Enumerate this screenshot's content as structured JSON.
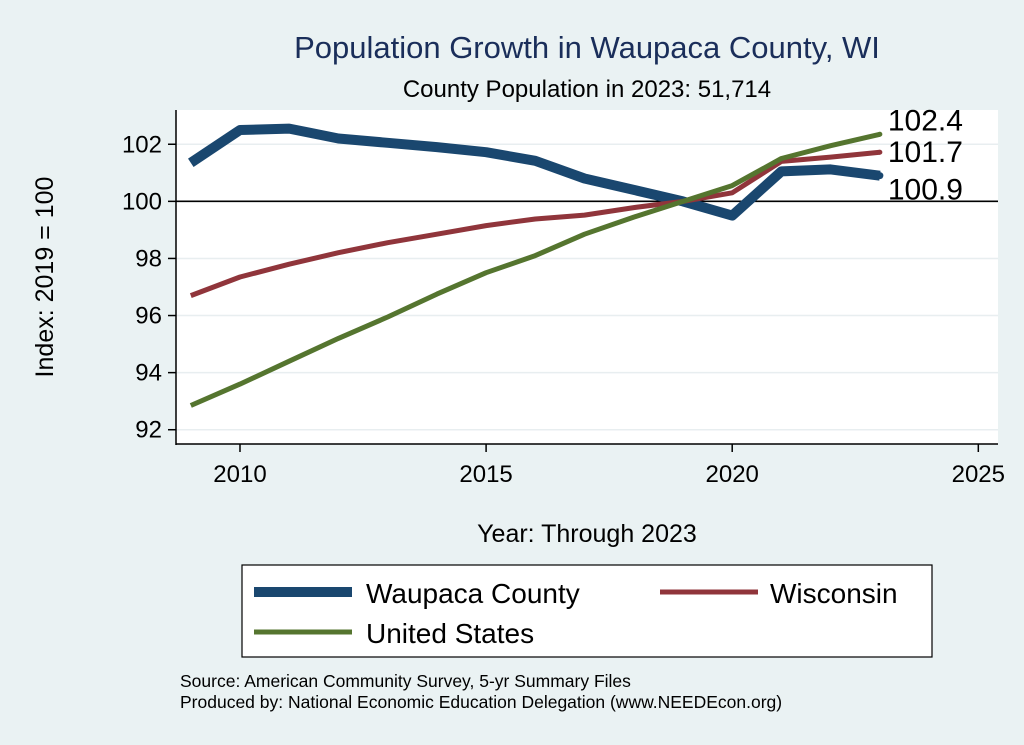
{
  "chart_data": {
    "type": "line",
    "title": "Population Growth in Waupaca County, WI",
    "subtitle": "County Population in 2023: 51,714",
    "xlabel": "Year: Through 2023",
    "ylabel": "Index: 2019 = 100",
    "xlim": [
      2008.7,
      2025.4
    ],
    "ylim": [
      91.5,
      103.2
    ],
    "xticks": [
      2010,
      2015,
      2020,
      2025
    ],
    "yticks": [
      92,
      94,
      96,
      98,
      100,
      102
    ],
    "reference_line": 100,
    "grid": true,
    "x": [
      2009,
      2010,
      2011,
      2012,
      2013,
      2014,
      2015,
      2016,
      2017,
      2018,
      2019,
      2020,
      2021,
      2022,
      2023
    ],
    "series": [
      {
        "name": "Waupaca  County",
        "color": "#1a476f",
        "values": [
          101.35,
          102.5,
          102.55,
          102.2,
          102.05,
          101.9,
          101.72,
          101.42,
          100.8,
          100.4,
          100.0,
          99.5,
          101.05,
          101.12,
          100.9
        ],
        "end_label": "100.9"
      },
      {
        "name": "Wisconsin",
        "color": "#90353b",
        "values": [
          96.7,
          97.35,
          97.8,
          98.2,
          98.55,
          98.85,
          99.15,
          99.38,
          99.52,
          99.78,
          100.0,
          100.3,
          101.4,
          101.55,
          101.72
        ],
        "end_label": "101.7"
      },
      {
        "name": "United States",
        "color": "#55752f",
        "values": [
          92.85,
          93.6,
          94.4,
          95.2,
          95.95,
          96.75,
          97.5,
          98.1,
          98.85,
          99.45,
          100.0,
          100.55,
          101.5,
          101.95,
          102.35
        ],
        "end_label": "102.4"
      }
    ],
    "legend_position": "bottom",
    "source_lines": [
      "Source: American Community Survey, 5-yr Summary Files",
      "Produced by: National Economic Education Delegation (www.NEEDEcon.org)"
    ]
  }
}
